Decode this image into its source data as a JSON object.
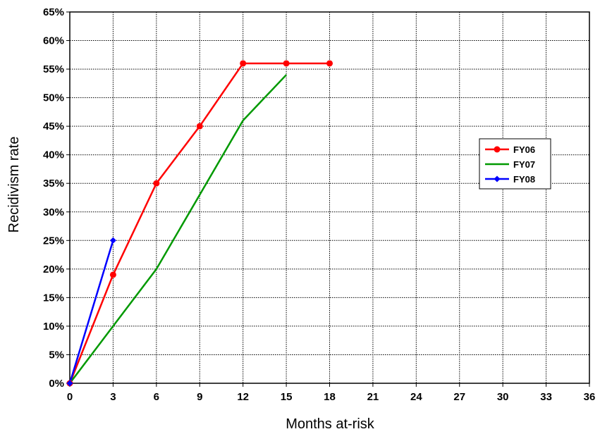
{
  "chart_data": {
    "type": "line",
    "title": "",
    "xlabel": "Months at-risk",
    "ylabel": "Recidivism rate",
    "xlim": [
      0,
      36
    ],
    "ylim": [
      0,
      65
    ],
    "x_ticks": [
      "0",
      "3",
      "6",
      "9",
      "12",
      "15",
      "18",
      "21",
      "24",
      "27",
      "30",
      "33",
      "36"
    ],
    "y_ticks": [
      "0%",
      "5%",
      "10%",
      "15%",
      "20%",
      "25%",
      "30%",
      "35%",
      "40%",
      "45%",
      "50%",
      "55%",
      "60%",
      "65%"
    ],
    "grid": true,
    "legend_position": "right",
    "series": [
      {
        "name": "FY06",
        "color": "#ff0000",
        "marker": "circle",
        "x": [
          0,
          3,
          6,
          9,
          12,
          15,
          18
        ],
        "y": [
          0,
          19,
          35,
          45,
          56,
          56,
          56
        ]
      },
      {
        "name": "FY07",
        "color": "#009900",
        "marker": "none",
        "x": [
          0,
          3,
          6,
          9,
          12,
          15
        ],
        "y": [
          0,
          10,
          20,
          33,
          46,
          54
        ]
      },
      {
        "name": "FY08",
        "color": "#0000ff",
        "marker": "diamond",
        "x": [
          0,
          3
        ],
        "y": [
          0,
          25
        ]
      }
    ]
  }
}
